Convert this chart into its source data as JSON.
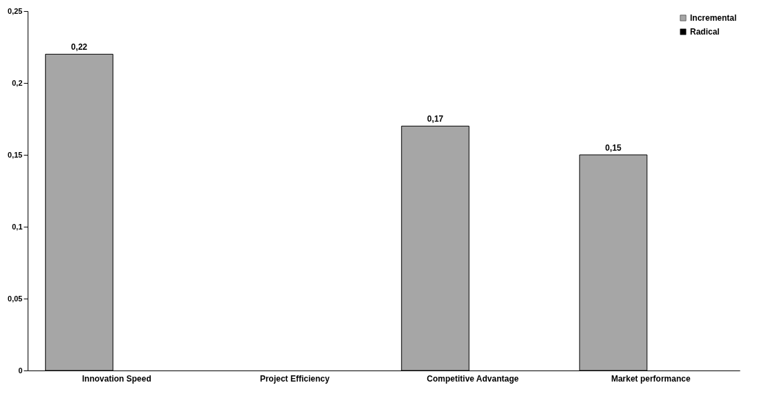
{
  "chart_data": {
    "type": "bar",
    "categories": [
      "Innovation Speed",
      "Project Efficiency",
      "Competitive Advantage",
      "Market performance"
    ],
    "series": [
      {
        "name": "Incremental",
        "color": "#a6a6a6",
        "values": [
          0.22,
          null,
          0.17,
          0.15
        ],
        "value_labels": [
          "0,22",
          null,
          "0,17",
          "0,15"
        ]
      },
      {
        "name": "Radical",
        "color": "#000000",
        "values": [
          null,
          null,
          null,
          null
        ]
      }
    ],
    "ylim": [
      0,
      0.25
    ],
    "yticks": [
      {
        "value": 0,
        "label": "0"
      },
      {
        "value": 0.05,
        "label": "0,05"
      },
      {
        "value": 0.1,
        "label": "0,1"
      },
      {
        "value": 0.15,
        "label": "0,15"
      },
      {
        "value": 0.2,
        "label": "0,2"
      },
      {
        "value": 0.25,
        "label": "0,25"
      }
    ],
    "grid": false,
    "legend": "top right"
  }
}
